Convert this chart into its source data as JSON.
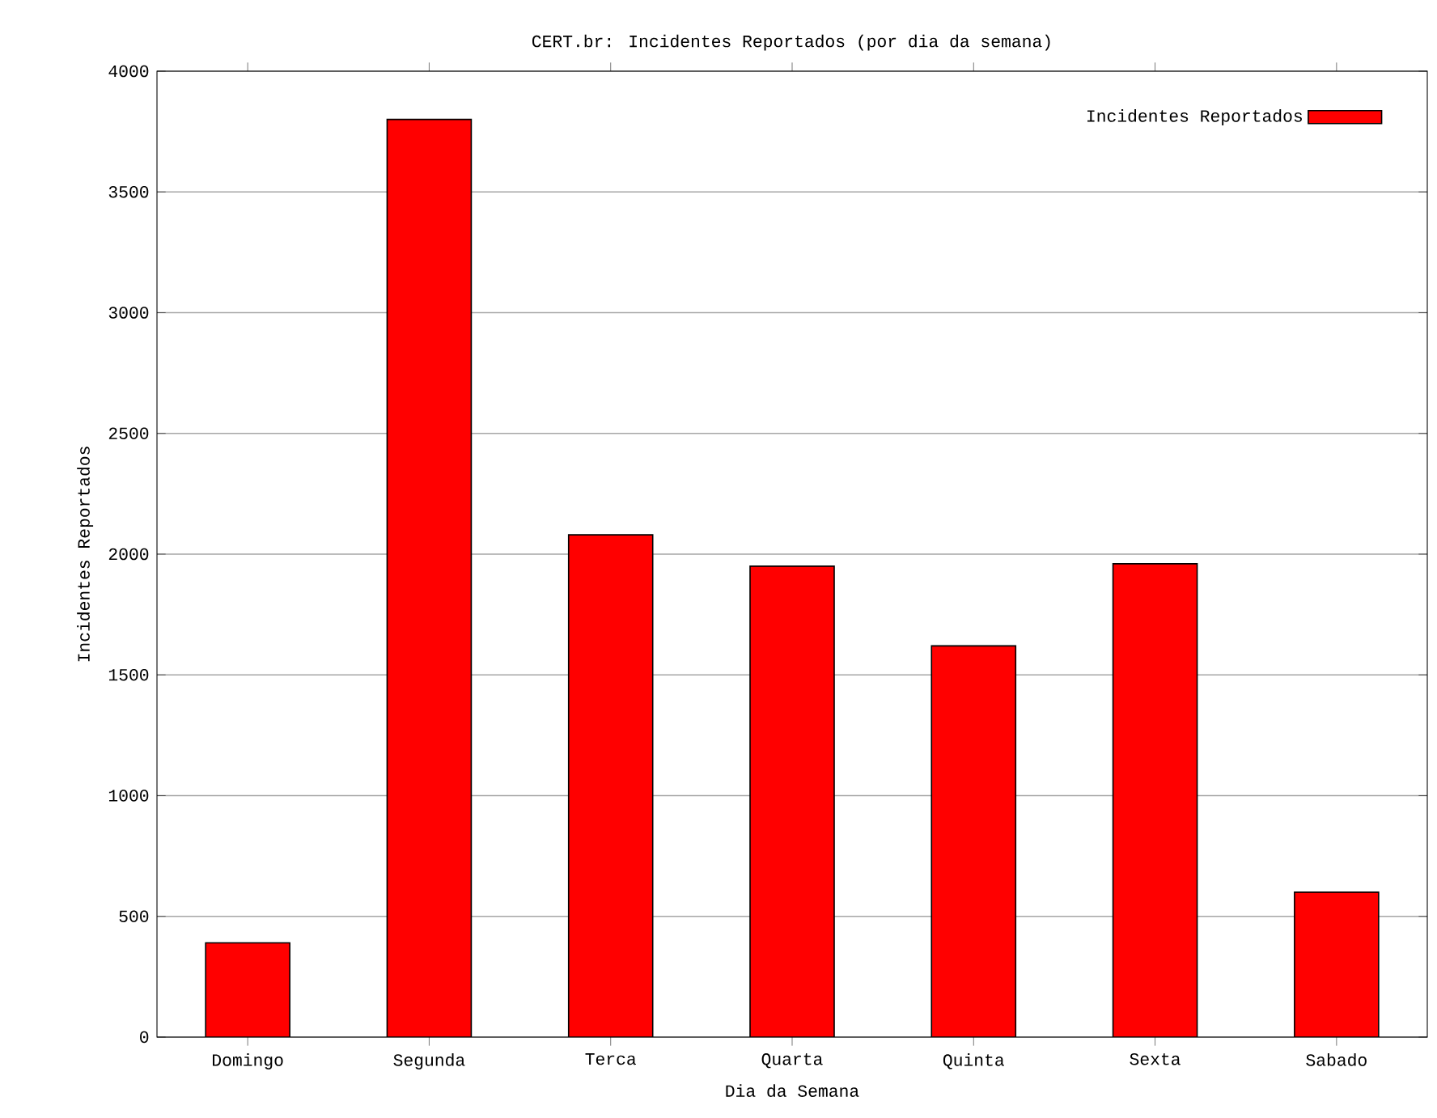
{
  "chart_data": {
    "type": "bar",
    "title": "CERT.br: Incidentes Reportados (por dia da semana)",
    "xlabel": "Dia da Semana",
    "ylabel": "Incidentes Reportados",
    "categories": [
      "Domingo",
      "Segunda",
      "Terca",
      "Quarta",
      "Quinta",
      "Sexta",
      "Sabado"
    ],
    "series": [
      {
        "name": "Incidentes Reportados",
        "color": "#ff0000",
        "values": [
          390,
          3800,
          2080,
          1950,
          1620,
          1960,
          600
        ]
      }
    ],
    "ylim": [
      0,
      4000
    ],
    "yticks": [
      0,
      500,
      1000,
      1500,
      2000,
      2500,
      3000,
      3500,
      4000
    ],
    "grid": "y",
    "legend": "top right"
  }
}
